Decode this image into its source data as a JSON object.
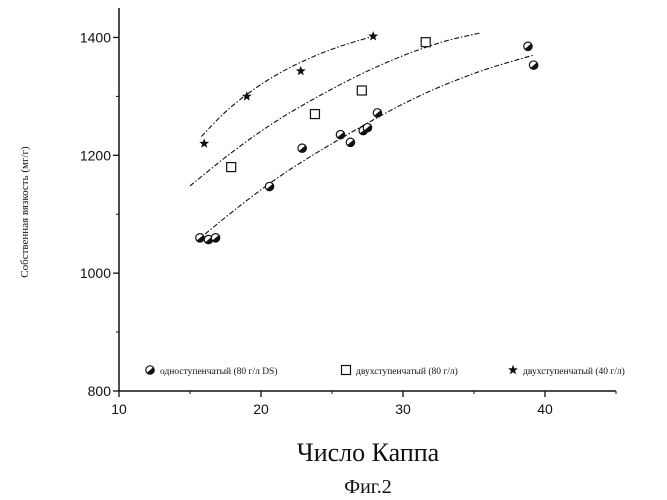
{
  "chart_data": {
    "type": "scatter",
    "title": "",
    "xlabel": "Число Каппа",
    "ylabel": "Собственная вязкость (мг/г)",
    "caption": "Фиг.2",
    "xlim": [
      10,
      45
    ],
    "ylim": [
      800,
      1450
    ],
    "x_ticks": [
      10,
      20,
      30,
      40
    ],
    "y_ticks": [
      800,
      1000,
      1200,
      1400
    ],
    "x_tick_labels": [
      "10",
      "20",
      "30",
      "40"
    ],
    "y_tick_labels": [
      "800",
      "1000",
      "1200",
      "1400"
    ],
    "grid": false,
    "legend_position": "bottom-inside",
    "series": [
      {
        "name": "одноступенчатый (80 г/л DS)",
        "marker": "half-filled-circle",
        "color": "#111111",
        "x": [
          15.7,
          16.3,
          16.8,
          20.6,
          22.9,
          25.6,
          26.3,
          27.2,
          27.5,
          28.2,
          38.8,
          39.2
        ],
        "y": [
          1060,
          1057,
          1060,
          1147,
          1212,
          1235,
          1222,
          1242,
          1247,
          1272,
          1385,
          1353
        ],
        "fit": {
          "x": [
            15.5,
            18,
            21,
            24,
            27,
            30,
            33,
            36,
            39.2
          ],
          "y": [
            1055,
            1105,
            1160,
            1206,
            1248,
            1288,
            1321,
            1348,
            1370
          ]
        }
      },
      {
        "name": "двухступенчатый (80 г/л)",
        "marker": "open-square",
        "color": "#111111",
        "x": [
          17.9,
          23.8,
          27.1,
          31.6
        ],
        "y": [
          1180,
          1270,
          1310,
          1392
        ],
        "fit": {
          "x": [
            15,
            18,
            21,
            24,
            27,
            30,
            33,
            35.5
          ],
          "y": [
            1148,
            1207,
            1258,
            1300,
            1338,
            1370,
            1395,
            1408
          ]
        }
      },
      {
        "name": "двухступенчатый (40 г/л)",
        "marker": "star",
        "color": "#111111",
        "x": [
          16.0,
          19.0,
          22.8,
          27.9
        ],
        "y": [
          1220,
          1300,
          1343,
          1402
        ],
        "fit": {
          "x": [
            15.8,
            17.5,
            19.5,
            21.5,
            23.5,
            25.5,
            27.9
          ],
          "y": [
            1232,
            1275,
            1313,
            1343,
            1366,
            1385,
            1402
          ]
        }
      }
    ]
  }
}
